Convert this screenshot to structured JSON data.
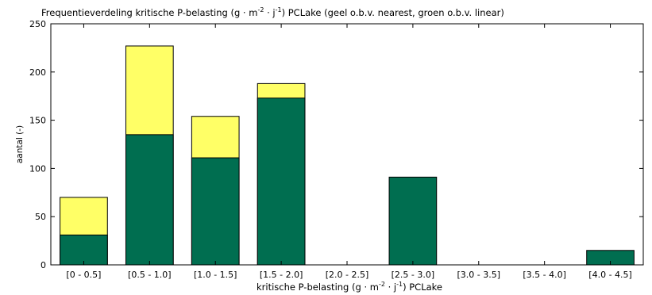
{
  "chart_data": {
    "type": "bar",
    "stacked": "overlay",
    "title_main": "Frequentieverdeling kritische P-belasting (g",
    "title_units": "m",
    "title_exp1": "-2",
    "title_j": "j",
    "title_exp2": "-1",
    "title_rest": ") PCLake (geel o.b.v. nearest, groen o.b.v. linear)",
    "xlabel_main": "kritische P-belasting (g",
    "xlabel_m": "m",
    "xlabel_exp1": "-2",
    "xlabel_j": "j",
    "xlabel_exp2": "-1",
    "xlabel_rest": ") PCLake",
    "ylabel": "aantal (-)",
    "ylim": [
      0,
      250
    ],
    "yticks": [
      "0",
      "50",
      "100",
      "150",
      "200",
      "250"
    ],
    "categories": [
      "[0 - 0.5]",
      "[0.5 - 1.0]",
      "[1.0 - 1.5]",
      "[1.5 - 2.0]",
      "[2.0 - 2.5]",
      "[2.5 - 3.0]",
      "[3.0 - 3.5]",
      "[3.5 - 4.0]",
      "[4.0 - 4.5]"
    ],
    "series": [
      {
        "name": "nearest",
        "color": "#ffff66",
        "values": [
          70,
          227,
          154,
          188,
          0,
          0,
          0,
          0,
          0
        ]
      },
      {
        "name": "linear",
        "color": "#006e50",
        "values": [
          31,
          135,
          111,
          173,
          0,
          91,
          0,
          0,
          15
        ]
      }
    ],
    "grid": false
  }
}
